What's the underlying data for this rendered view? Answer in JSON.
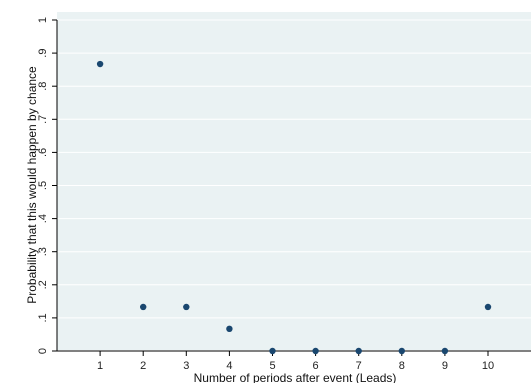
{
  "chart_data": {
    "type": "scatter",
    "xlabel": "Number of periods after event (Leads)",
    "ylabel": "Probability that this would happen by chance",
    "x_ticks": [
      "1",
      "2",
      "3",
      "4",
      "5",
      "6",
      "7",
      "8",
      "9",
      "10"
    ],
    "y_ticks": [
      "0",
      ".1",
      ".2",
      ".3",
      ".4",
      ".5",
      ".6",
      ".7",
      ".8",
      ".9",
      "1"
    ],
    "xlim": [
      0,
      11
    ],
    "ylim": [
      0,
      1
    ],
    "grid": true,
    "series": [
      {
        "x": [
          1,
          2,
          3,
          4,
          5,
          6,
          7,
          8,
          9,
          10
        ],
        "y": [
          0.867,
          0.133,
          0.133,
          0.067,
          0,
          0,
          0,
          0,
          0,
          0.133
        ]
      }
    ],
    "colors": {
      "plot_background": "#eaf2f3",
      "page_background": "#ffffff",
      "marker": "#1a476f",
      "axis": "#000000",
      "grid": "#ffffff"
    }
  }
}
